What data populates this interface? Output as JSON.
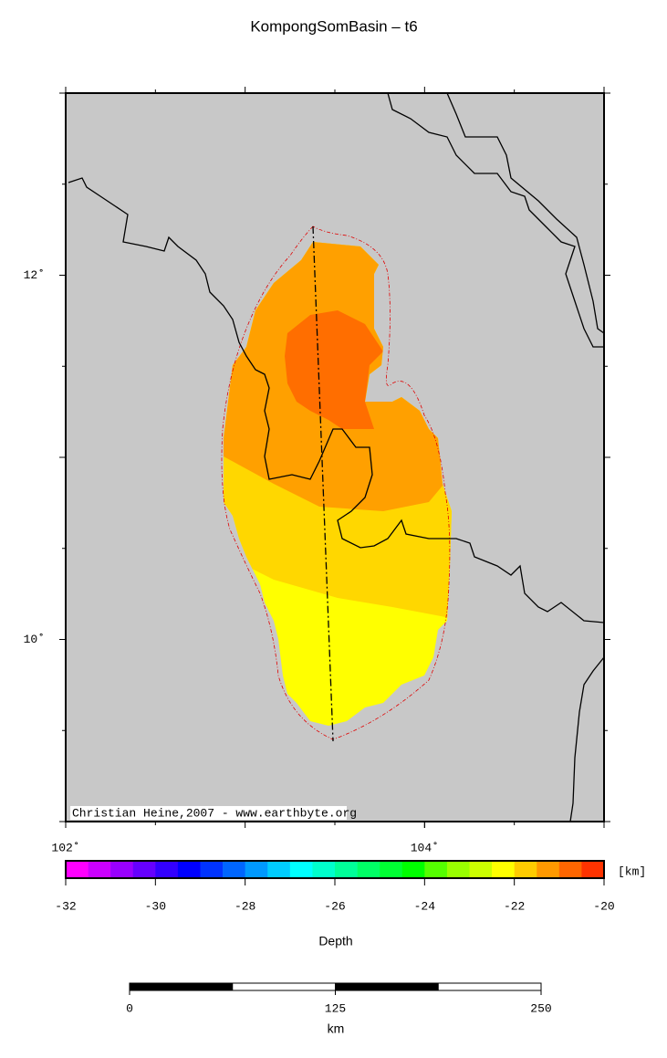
{
  "map": {
    "title": "KompongSomBasin – t6",
    "lon_range": [
      102,
      105
    ],
    "lat_range": [
      9,
      13
    ],
    "lon_ticks": [
      {
        "value": 102,
        "label": "102˚"
      },
      {
        "value": 104,
        "label": "104˚"
      }
    ],
    "lat_ticks": [
      {
        "value": 10,
        "label": "10˚"
      },
      {
        "value": 12,
        "label": "12˚"
      }
    ],
    "credit": "Christian Heine,2007 - www.earthbyte.org",
    "colorbar": {
      "range": [
        -32,
        -20
      ],
      "ticks": [
        -32,
        -30,
        -28,
        -26,
        -24,
        -22,
        -20
      ],
      "unit": "[km]",
      "label": "Depth",
      "colors": [
        "#ff00ff",
        "#cc00ff",
        "#9900ff",
        "#6600ff",
        "#3300ff",
        "#0000ff",
        "#0033ff",
        "#0066ff",
        "#0099ff",
        "#00ccff",
        "#00ffff",
        "#00ffcc",
        "#00ff99",
        "#00ff66",
        "#00ff33",
        "#00ff00",
        "#55ff00",
        "#99ff00",
        "#ccff00",
        "#ffff00",
        "#ffcc00",
        "#ff9900",
        "#ff6600",
        "#ff3300"
      ]
    },
    "scalebar": {
      "range": [
        0,
        250
      ],
      "ticks": [
        0,
        125,
        250
      ],
      "unit": "km"
    }
  }
}
